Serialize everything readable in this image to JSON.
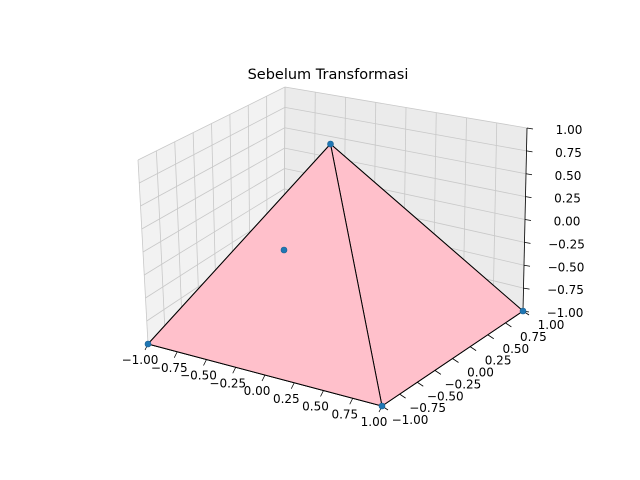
{
  "chart_data": {
    "type": "3d-surface-scatter",
    "title": "Sebelum Transformasi",
    "xlabel": "",
    "ylabel": "",
    "zlabel": "",
    "xlim": [
      -1.0,
      1.0
    ],
    "ylim": [
      -1.0,
      1.0
    ],
    "zlim": [
      -1.0,
      1.0
    ],
    "x_ticks": [
      "−1.00",
      "−0.75",
      "−0.50",
      "−0.25",
      "0.00",
      "0.25",
      "0.50",
      "0.75",
      "1.00"
    ],
    "y_ticks": [
      "−1.00",
      "−0.75",
      "−0.50",
      "−0.25",
      "0.00",
      "0.25",
      "0.50",
      "0.75",
      "1.00"
    ],
    "z_ticks": [
      "−1.00",
      "−0.75",
      "−0.50",
      "−0.25",
      "0.00",
      "0.25",
      "0.50",
      "0.75",
      "1.00"
    ],
    "grid": true,
    "vertices": [
      {
        "x": -1,
        "y": -1,
        "z": -1
      },
      {
        "x": 1,
        "y": -1,
        "z": -1
      },
      {
        "x": 1,
        "y": 1,
        "z": -1
      },
      {
        "x": -1,
        "y": 1,
        "z": -1
      },
      {
        "x": 0,
        "y": 0,
        "z": 1
      }
    ],
    "faces": [
      [
        0,
        1,
        4
      ],
      [
        1,
        2,
        4
      ],
      [
        2,
        3,
        4
      ],
      [
        3,
        0,
        4
      ],
      [
        0,
        1,
        2,
        3
      ]
    ],
    "face_color": "#ffc0cb",
    "edge_color": "#000000",
    "marker_color": "#1f77b4"
  }
}
